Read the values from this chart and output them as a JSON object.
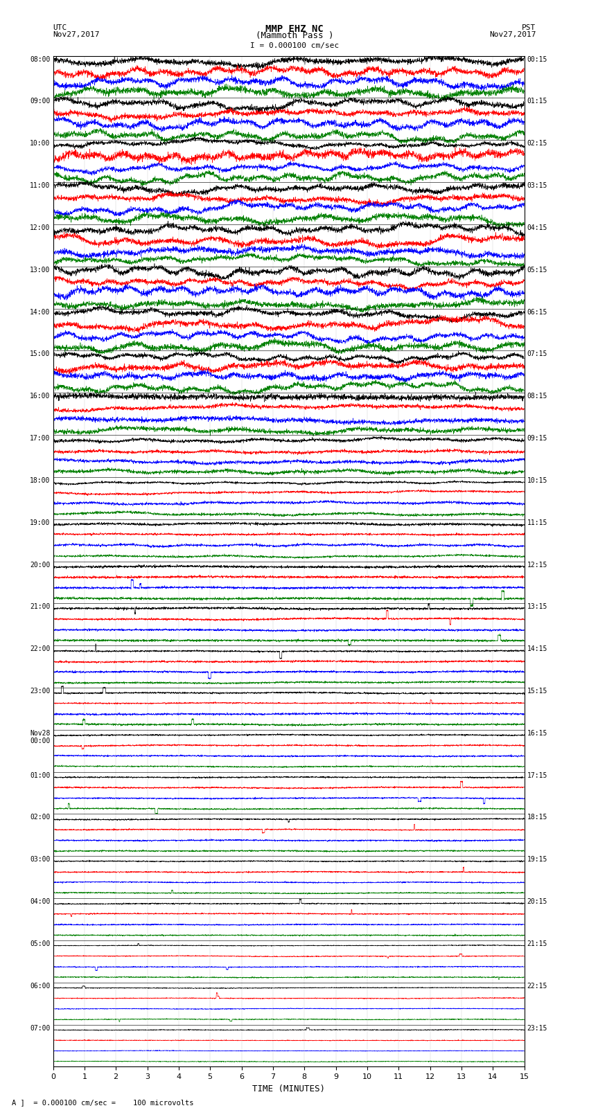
{
  "title_line1": "MMP EHZ NC",
  "title_line2": "(Mammoth Pass )",
  "scale_label": "I = 0.000100 cm/sec",
  "utc_label": "UTC\nNov27,2017",
  "pst_label": "PST\nNov27,2017",
  "bottom_label": "A ]  = 0.000100 cm/sec =    100 microvolts",
  "xlabel": "TIME (MINUTES)",
  "left_times_utc": [
    "08:00",
    "09:00",
    "10:00",
    "11:00",
    "12:00",
    "13:00",
    "14:00",
    "15:00",
    "16:00",
    "17:00",
    "18:00",
    "19:00",
    "20:00",
    "21:00",
    "22:00",
    "23:00",
    "Nov28\n00:00",
    "01:00",
    "02:00",
    "03:00",
    "04:00",
    "05:00",
    "06:00",
    "07:00"
  ],
  "right_times_pst": [
    "00:15",
    "01:15",
    "02:15",
    "03:15",
    "04:15",
    "05:15",
    "06:15",
    "07:15",
    "08:15",
    "09:15",
    "10:15",
    "11:15",
    "12:15",
    "13:15",
    "14:15",
    "15:15",
    "16:15",
    "17:15",
    "18:15",
    "19:15",
    "20:15",
    "21:15",
    "22:15",
    "23:15"
  ],
  "n_rows": 24,
  "traces_per_row": 4,
  "minutes_per_trace": 15,
  "colors": [
    "black",
    "red",
    "blue",
    "green"
  ],
  "bg_color": "white",
  "fig_width": 8.5,
  "fig_height": 16.13,
  "noise_scales": [
    0.85,
    0.85,
    0.85,
    0.85,
    0.85,
    0.85,
    0.85,
    0.75,
    0.6,
    0.4,
    0.3,
    0.25,
    0.22,
    0.2,
    0.18,
    0.16,
    0.15,
    0.14,
    0.14,
    0.13,
    0.12,
    0.1,
    0.09,
    0.08
  ]
}
